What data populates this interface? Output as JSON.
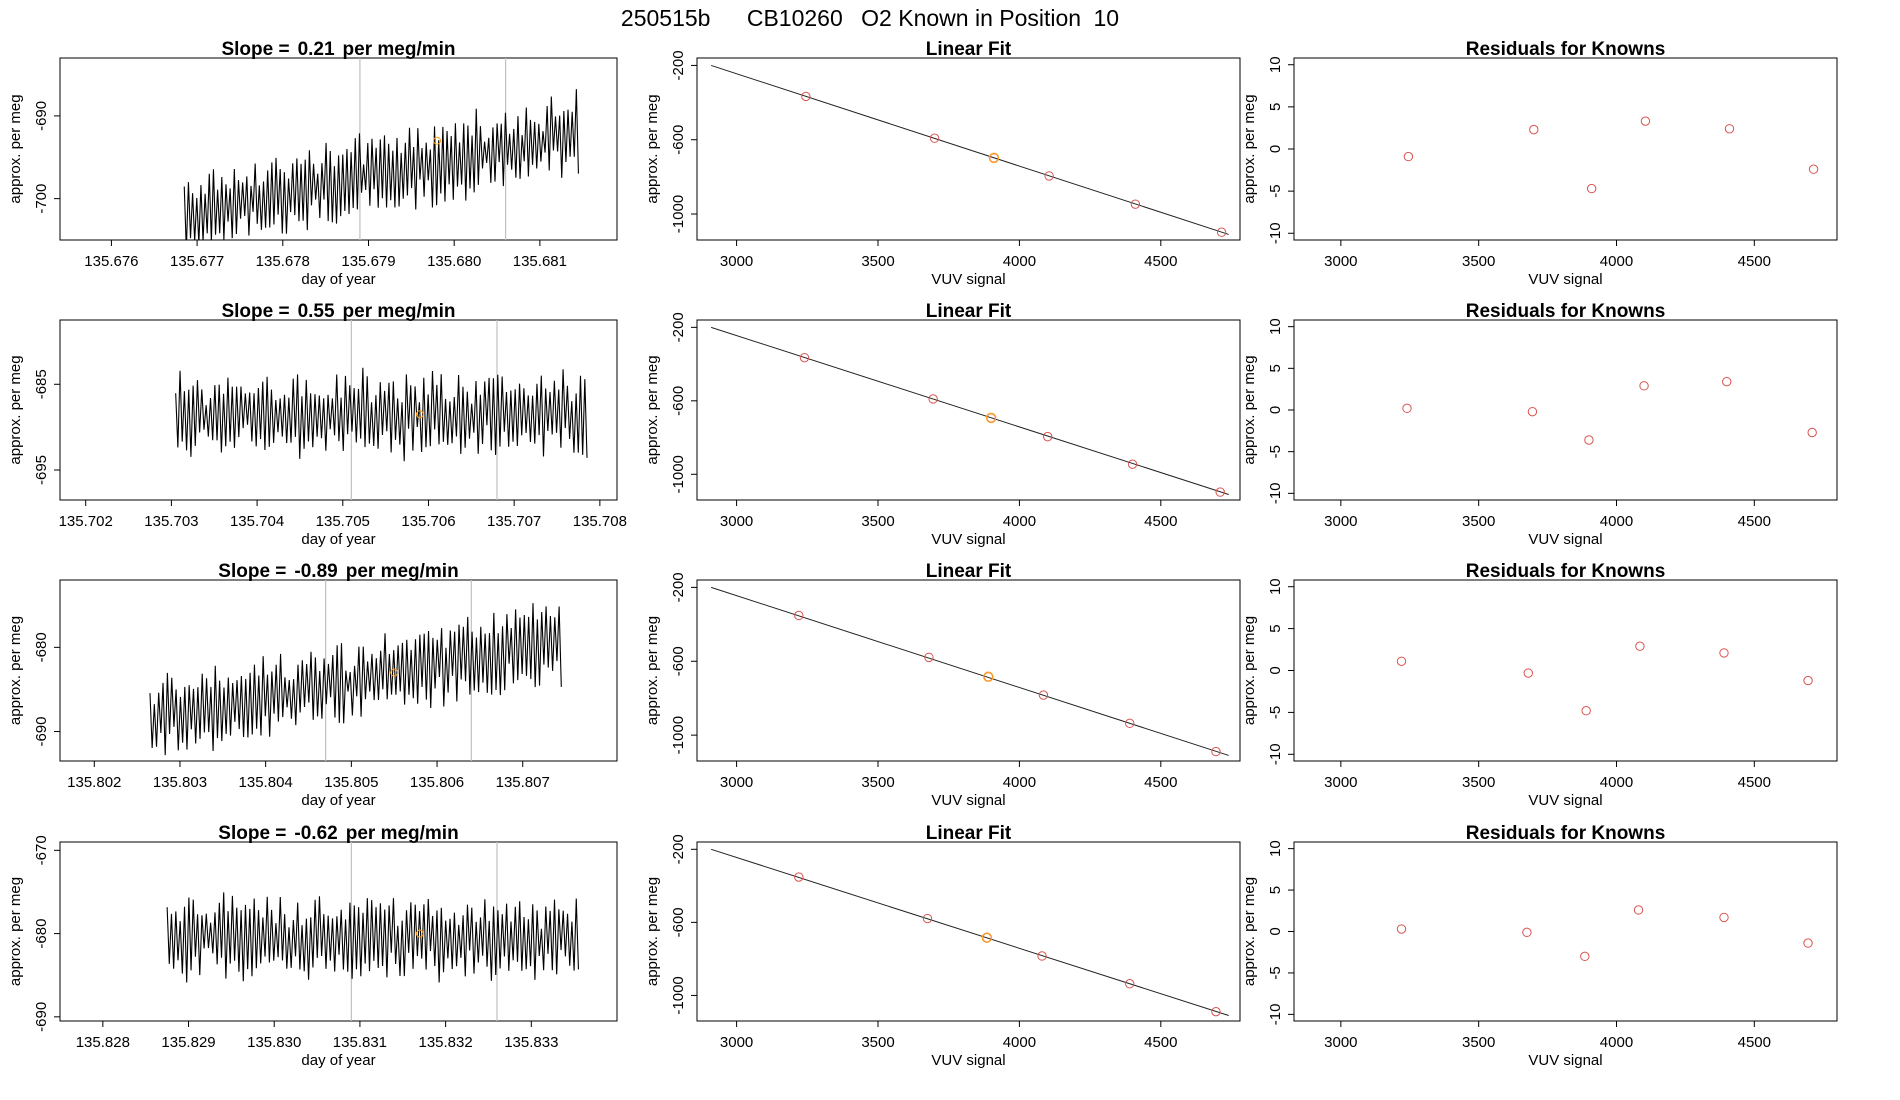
{
  "page_title": {
    "run": "250515b",
    "cylinder": "CB10260",
    "label": "O2 Known in Position",
    "position": "10"
  },
  "chart_data": [
    {
      "type": "line",
      "row": 1,
      "title_prefix": "Slope =",
      "slope": "0.21",
      "title_suffix": "per meg/min",
      "xlabel": "day of year",
      "ylabel": "approx. per meg",
      "xlim": [
        135.6754,
        135.6819
      ],
      "ylim": [
        -705,
        -683
      ],
      "xticks": [
        "135.676",
        "135.677",
        "135.678",
        "135.679",
        "135.680",
        "135.681"
      ],
      "yticks": [
        "-700",
        "-690"
      ],
      "vlines": [
        135.6789,
        135.6806
      ],
      "signal": {
        "start": 135.67685,
        "end": 135.68145,
        "base_start": -702,
        "base_end": -692,
        "amplitude": 4.8
      },
      "marker": {
        "x": 135.6798,
        "y": -693
      },
      "series": [
        {
          "values": []
        }
      ]
    },
    {
      "type": "line",
      "row": 2,
      "title_prefix": "Slope =",
      "slope": "0.55",
      "title_suffix": "per meg/min",
      "xlabel": "day of year",
      "ylabel": "approx. per meg",
      "xlim": [
        135.7017,
        135.7082
      ],
      "ylim": [
        -698.5,
        -677.5
      ],
      "xticks": [
        "135.702",
        "135.703",
        "135.704",
        "135.705",
        "135.706",
        "135.707",
        "135.708"
      ],
      "yticks": [
        "-695",
        "-685"
      ],
      "vlines": [
        135.7051,
        135.7068
      ],
      "signal": {
        "start": 135.70305,
        "end": 135.70785,
        "base_start": -688.5,
        "base_end": -688.5,
        "amplitude": 4.8
      },
      "marker": {
        "x": 135.7059,
        "y": -688.5
      },
      "series": [
        {
          "values": []
        }
      ]
    },
    {
      "type": "line",
      "row": 3,
      "title_prefix": "Slope =",
      "slope": "-0.89",
      "title_suffix": "per meg/min",
      "xlabel": "day of year",
      "ylabel": "approx. per meg",
      "xlim": [
        135.8016,
        135.8081
      ],
      "ylim": [
        -693.5,
        -672
      ],
      "xticks": [
        "135.802",
        "135.803",
        "135.804",
        "135.805",
        "135.806",
        "135.807"
      ],
      "yticks": [
        "-690",
        "-680"
      ],
      "vlines": [
        135.8047,
        135.8064
      ],
      "signal": {
        "start": 135.80265,
        "end": 135.80745,
        "base_start": -688.5,
        "base_end": -679.5,
        "amplitude": 4.8
      },
      "marker": {
        "x": 135.8055,
        "y": -683
      },
      "series": [
        {
          "values": []
        }
      ]
    },
    {
      "type": "line",
      "row": 4,
      "title_prefix": "Slope =",
      "slope": "-0.62",
      "title_suffix": "per meg/min",
      "xlabel": "day of year",
      "ylabel": "approx. per meg",
      "xlim": [
        135.8275,
        135.834
      ],
      "ylim": [
        -690.5,
        -669
      ],
      "xticks": [
        "135.828",
        "135.829",
        "135.830",
        "135.831",
        "135.832",
        "135.833"
      ],
      "yticks": [
        "-690",
        "-680",
        "-670"
      ],
      "vlines": [
        135.8309,
        135.8326
      ],
      "signal": {
        "start": 135.82875,
        "end": 135.83355,
        "base_start": -680.5,
        "base_end": -680.5,
        "amplitude": 4.8
      },
      "marker": {
        "x": 135.8317,
        "y": -680
      },
      "series": [
        {
          "values": []
        }
      ]
    },
    {
      "type": "scatter",
      "row": 1,
      "title": "Linear Fit",
      "xlabel": "VUV signal",
      "ylabel": "approx. per meg",
      "xlim": [
        2860,
        4780
      ],
      "ylim": [
        -1140,
        -160
      ],
      "xticks": [
        "3000",
        "3500",
        "4000",
        "4500"
      ],
      "yticks": [
        "-200",
        "-600",
        "-1000"
      ],
      "fit_line": {
        "x": [
          2910,
          4740
        ],
        "y": [
          -200,
          -1110
        ]
      },
      "points": {
        "x": [
          3245,
          3700,
          3910,
          4105,
          4410,
          4715
        ],
        "y": [
          -367,
          -592,
          -698,
          -795,
          -947,
          -1098
        ]
      },
      "highlight": {
        "x": 3910,
        "y": -698
      }
    },
    {
      "type": "scatter",
      "row": 2,
      "title": "Linear Fit",
      "xlabel": "VUV signal",
      "ylabel": "approx. per meg",
      "xlim": [
        2860,
        4780
      ],
      "ylim": [
        -1140,
        -160
      ],
      "xticks": [
        "3000",
        "3500",
        "4000",
        "4500"
      ],
      "yticks": [
        "-200",
        "-600",
        "-1000"
      ],
      "fit_line": {
        "x": [
          2910,
          4740
        ],
        "y": [
          -200,
          -1110
        ]
      },
      "points": {
        "x": [
          3240,
          3695,
          3900,
          4100,
          4400,
          4710
        ],
        "y": [
          -365,
          -590,
          -693,
          -795,
          -945,
          -1097
        ]
      },
      "highlight": {
        "x": 3900,
        "y": -693
      }
    },
    {
      "type": "scatter",
      "row": 3,
      "title": "Linear Fit",
      "xlabel": "VUV signal",
      "ylabel": "approx. per meg",
      "xlim": [
        2860,
        4780
      ],
      "ylim": [
        -1140,
        -160
      ],
      "xticks": [
        "3000",
        "3500",
        "4000",
        "4500"
      ],
      "yticks": [
        "-200",
        "-600",
        "-1000"
      ],
      "fit_line": {
        "x": [
          2910,
          4740
        ],
        "y": [
          -200,
          -1110
        ]
      },
      "points": {
        "x": [
          3220,
          3680,
          3890,
          4085,
          4390,
          4695
        ],
        "y": [
          -352,
          -579,
          -684,
          -783,
          -936,
          -1089
        ]
      },
      "highlight": {
        "x": 3890,
        "y": -684
      }
    },
    {
      "type": "scatter",
      "row": 4,
      "title": "Linear Fit",
      "xlabel": "VUV signal",
      "ylabel": "approx. per meg",
      "xlim": [
        2860,
        4780
      ],
      "ylim": [
        -1140,
        -160
      ],
      "xticks": [
        "3000",
        "3500",
        "4000",
        "4500"
      ],
      "yticks": [
        "-200",
        "-600",
        "-1000"
      ],
      "fit_line": {
        "x": [
          2910,
          4740
        ],
        "y": [
          -200,
          -1110
        ]
      },
      "points": {
        "x": [
          3220,
          3675,
          3885,
          4080,
          4390,
          4695
        ],
        "y": [
          -352,
          -579,
          -684,
          -784,
          -936,
          -1089
        ]
      },
      "highlight": {
        "x": 3885,
        "y": -684
      }
    },
    {
      "type": "scatter",
      "row": 1,
      "title": "Residuals for Knowns",
      "xlabel": "VUV signal",
      "ylabel": "approx. per meg",
      "xlim": [
        2830,
        4800
      ],
      "ylim": [
        -10.8,
        10.8
      ],
      "xticks": [
        "3000",
        "3500",
        "4000",
        "4500"
      ],
      "yticks": [
        "-10",
        "-5",
        "0",
        "5",
        "10"
      ],
      "points": {
        "x": [
          3245,
          3700,
          3910,
          4105,
          4410,
          4715
        ],
        "y": [
          -0.9,
          2.3,
          -4.7,
          3.3,
          2.4,
          -2.4
        ]
      }
    },
    {
      "type": "scatter",
      "row": 2,
      "title": "Residuals for Knowns",
      "xlabel": "VUV signal",
      "ylabel": "approx. per meg",
      "xlim": [
        2830,
        4800
      ],
      "ylim": [
        -10.8,
        10.8
      ],
      "xticks": [
        "3000",
        "3500",
        "4000",
        "4500"
      ],
      "yticks": [
        "-10",
        "-5",
        "0",
        "5",
        "10"
      ],
      "points": {
        "x": [
          3240,
          3695,
          3900,
          4100,
          4400,
          4710
        ],
        "y": [
          0.2,
          -0.2,
          -3.6,
          2.9,
          3.4,
          -2.7
        ]
      }
    },
    {
      "type": "scatter",
      "row": 3,
      "title": "Residuals for Knowns",
      "xlabel": "VUV signal",
      "ylabel": "approx. per meg",
      "xlim": [
        2830,
        4800
      ],
      "ylim": [
        -10.8,
        10.8
      ],
      "xticks": [
        "3000",
        "3500",
        "4000",
        "4500"
      ],
      "yticks": [
        "-10",
        "-5",
        "0",
        "5",
        "10"
      ],
      "points": {
        "x": [
          3220,
          3680,
          3890,
          4085,
          4390,
          4695
        ],
        "y": [
          1.1,
          -0.3,
          -4.8,
          2.9,
          2.1,
          -1.2
        ]
      }
    },
    {
      "type": "scatter",
      "row": 4,
      "title": "Residuals for Knowns",
      "xlabel": "VUV signal",
      "ylabel": "approx. per meg",
      "xlim": [
        2830,
        4800
      ],
      "ylim": [
        -10.8,
        10.8
      ],
      "xticks": [
        "3000",
        "3500",
        "4000",
        "4500"
      ],
      "yticks": [
        "-10",
        "-5",
        "0",
        "5",
        "10"
      ],
      "points": {
        "x": [
          3220,
          3675,
          3885,
          4080,
          4390,
          4695
        ],
        "y": [
          0.3,
          -0.1,
          -3.0,
          2.6,
          1.7,
          -1.4
        ]
      }
    }
  ],
  "colors": {
    "trace": "#000000",
    "axis": "#000000",
    "vline": "#c0c0c0",
    "fit_line": "#222222",
    "point": "#d9534f",
    "highlight": "#ffa020",
    "marker": "#ffa020"
  }
}
